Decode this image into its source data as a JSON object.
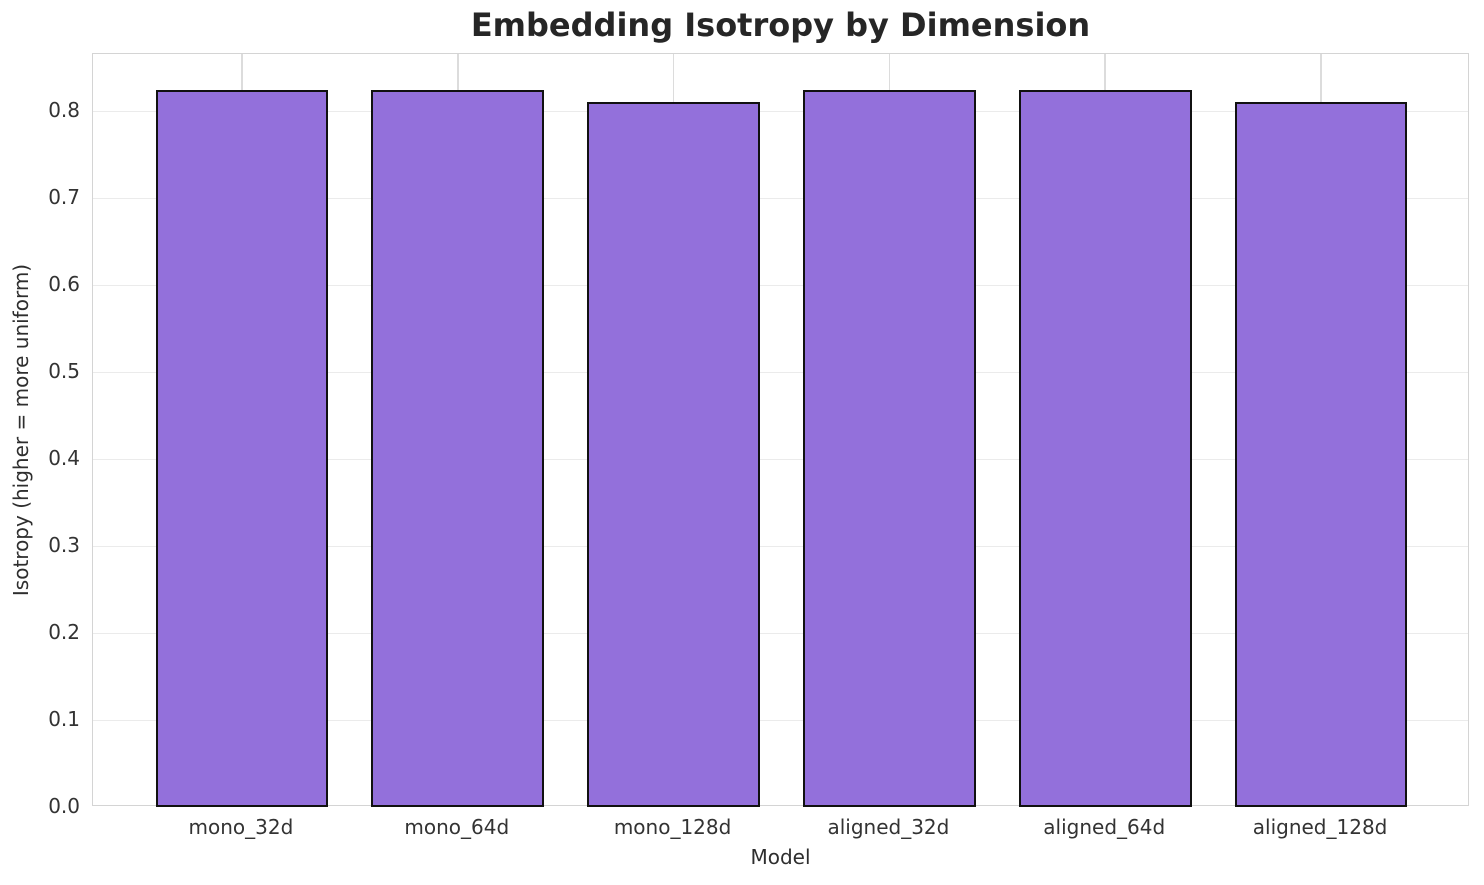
{
  "chart": {
    "title": "Embedding Isotropy by Dimension",
    "xlabel": "Model",
    "ylabel": "Isotropy (higher = more uniform)"
  },
  "chart_data": {
    "type": "bar",
    "title": "Embedding Isotropy by Dimension",
    "xlabel": "Model",
    "ylabel": "Isotropy (higher = more uniform)",
    "categories": [
      "mono_32d",
      "mono_64d",
      "mono_128d",
      "aligned_32d",
      "aligned_64d",
      "aligned_128d"
    ],
    "values": [
      0.824,
      0.824,
      0.81,
      0.824,
      0.824,
      0.81
    ],
    "ylim": [
      0,
      0.8655
    ],
    "yticks": [
      0.0,
      0.1,
      0.2,
      0.3,
      0.4,
      0.5,
      0.6,
      0.7,
      0.8
    ],
    "ytick_labels": [
      "0.0",
      "0.1",
      "0.2",
      "0.3",
      "0.4",
      "0.5",
      "0.6",
      "0.7",
      "0.8"
    ],
    "x_margin_units": 0.69,
    "bar_width_fraction": 0.8,
    "grid": "both",
    "legend_position": "none",
    "colors": {
      "bar_fill": "#9370db",
      "bar_edge": "#111111",
      "hgrid": "#ebebeb",
      "vgrid": "#dcdcdc",
      "spine": "#d4d4d4",
      "tick_text": "#333333",
      "title_text": "#262626"
    }
  }
}
